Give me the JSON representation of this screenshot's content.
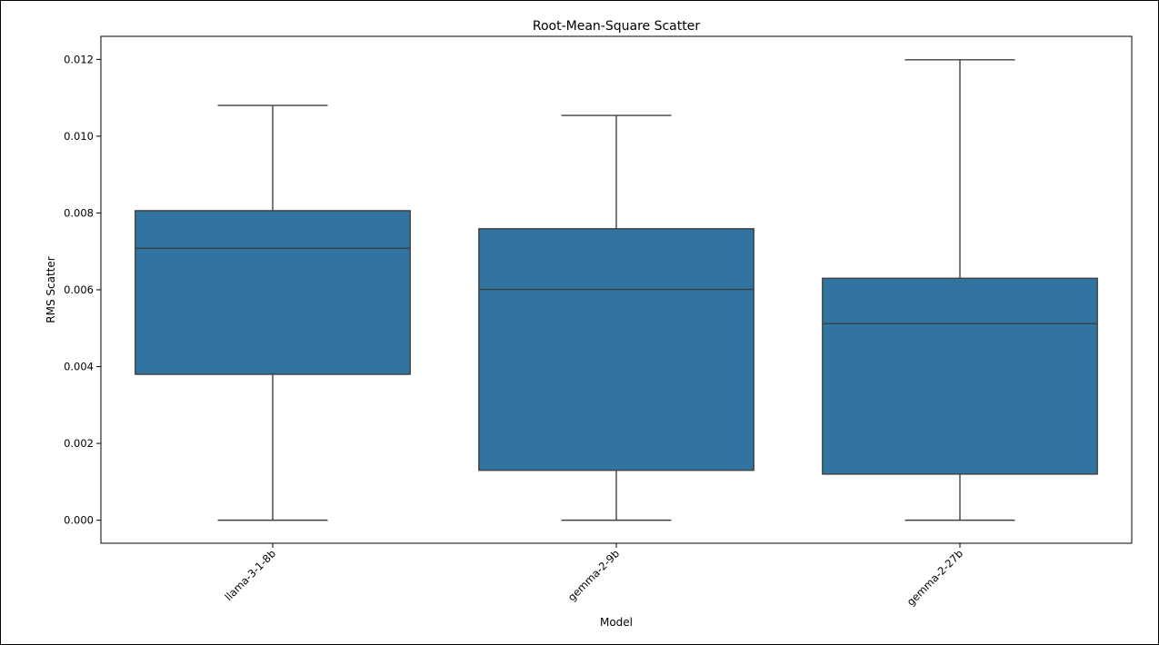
{
  "chart_data": {
    "type": "box",
    "title": "Root-Mean-Square Scatter",
    "xlabel": "Model",
    "ylabel": "RMS Scatter",
    "ylim": [
      -0.0006,
      0.0126
    ],
    "yticks": [
      "0.000",
      "0.002",
      "0.004",
      "0.006",
      "0.008",
      "0.010",
      "0.012"
    ],
    "box_color": "#3274a1",
    "line_color": "#3f3f3f",
    "grid": false,
    "categories": [
      "llama-3-1-8b",
      "gemma-2-9b",
      "gemma-2-27b"
    ],
    "boxes": [
      {
        "min": 0.0,
        "q1": 0.0038,
        "median": 0.00708,
        "q3": 0.00806,
        "max": 0.0108
      },
      {
        "min": 0.0,
        "q1": 0.0013,
        "median": 0.00601,
        "q3": 0.00759,
        "max": 0.01054
      },
      {
        "min": 0.0,
        "q1": 0.0012,
        "median": 0.00512,
        "q3": 0.0063,
        "max": 0.01199
      }
    ]
  }
}
